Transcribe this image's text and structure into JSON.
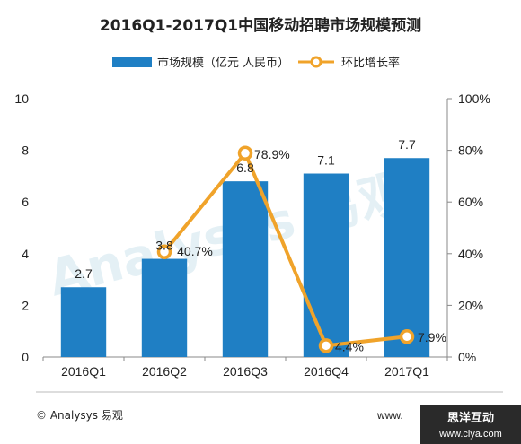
{
  "chart_data": {
    "type": "bar",
    "title": "2016Q1-2017Q1中国移动招聘市场规模预测",
    "categories": [
      "2016Q1",
      "2016Q2",
      "2016Q3",
      "2016Q4",
      "2017Q1"
    ],
    "series": [
      {
        "name": "市场规模（亿元 人民币）",
        "type": "bar",
        "axis": "left",
        "color": "#1f7fc4",
        "values": [
          2.7,
          3.8,
          6.8,
          7.1,
          7.7
        ],
        "labels": [
          "2.7",
          "3.8",
          "6.8",
          "7.1",
          "7.7"
        ]
      },
      {
        "name": "环比增长率",
        "type": "line",
        "axis": "right",
        "color": "#f0a32a",
        "values": [
          null,
          40.7,
          78.9,
          4.4,
          7.9
        ],
        "labels": [
          "",
          "40.7%",
          "78.9%",
          "4.4%",
          "7.9%"
        ]
      }
    ],
    "y_left": {
      "min": 0,
      "max": 10,
      "ticks": [
        "0",
        "2",
        "4",
        "6",
        "8",
        "10"
      ]
    },
    "y_right": {
      "min": 0,
      "max": 100,
      "ticks": [
        "0%",
        "20%",
        "40%",
        "60%",
        "80%",
        "100%"
      ]
    },
    "grid": false,
    "legend_position": "top"
  },
  "footer": {
    "source": "© Analysys 易观",
    "url": "www.",
    "watermark_cn": "思洋互动",
    "watermark_url": "www.ciya.com",
    "background_watermark": "Analysys 易观"
  }
}
